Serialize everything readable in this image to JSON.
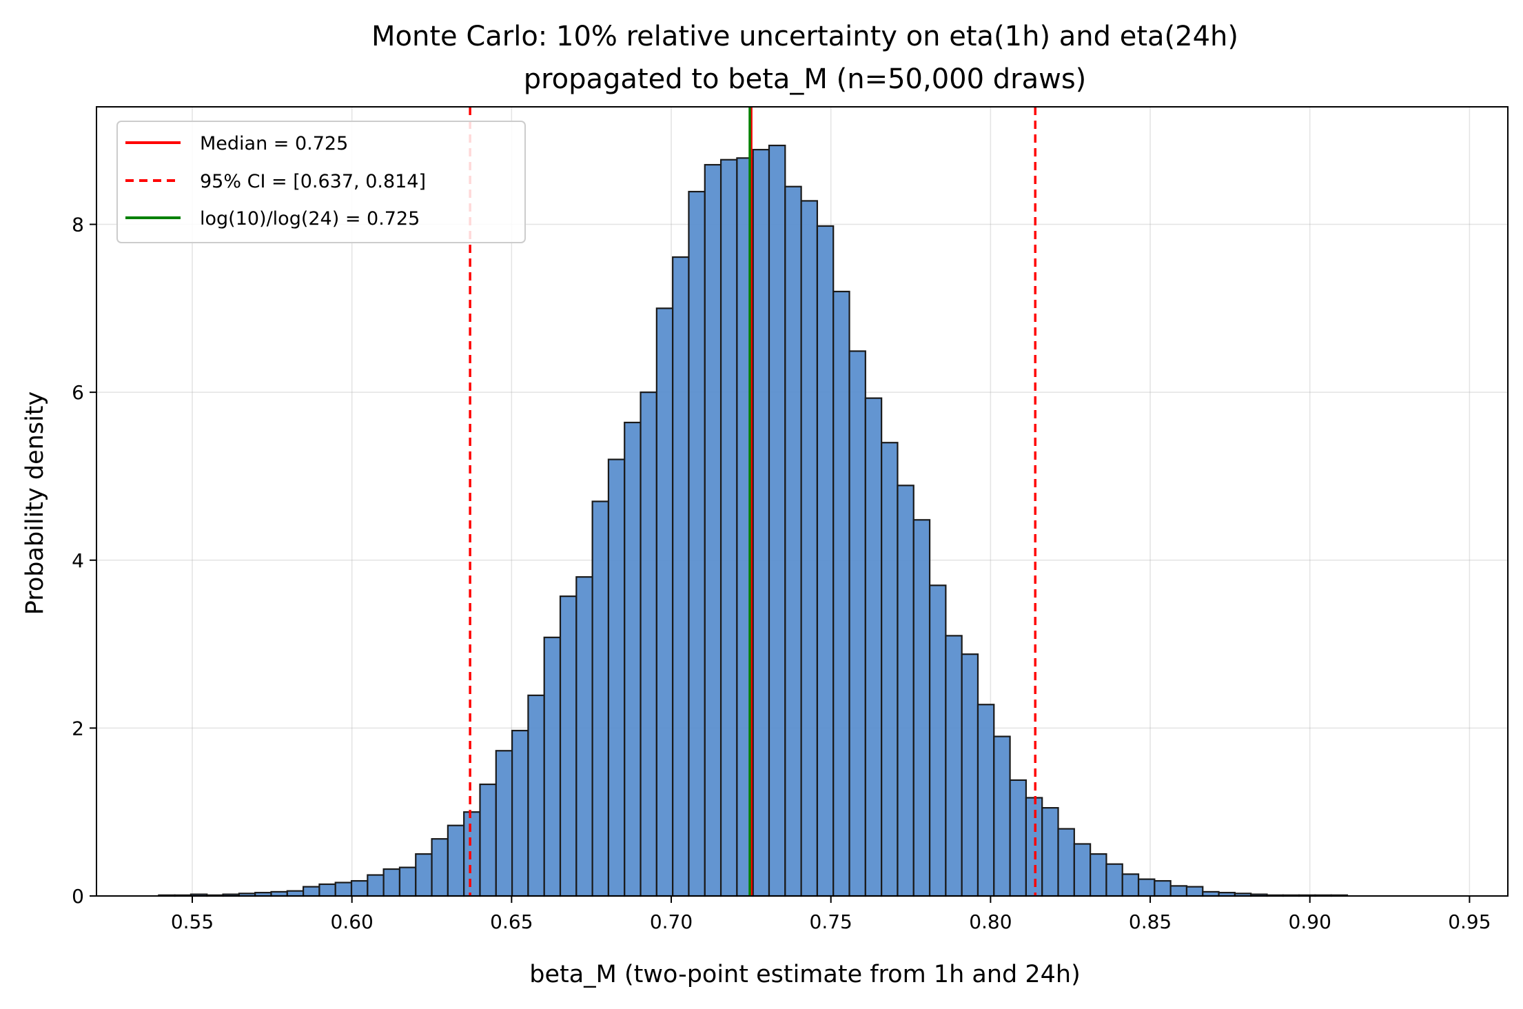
{
  "chart_data": {
    "type": "bar",
    "title": "Monte Carlo: 10% relative uncertainty on eta(1h) and eta(24h)",
    "subtitle": "propagated to beta_M (n=50,000 draws)",
    "xlabel": "beta_M (two-point estimate from 1h and 24h)",
    "ylabel": "Probability density",
    "xlim": [
      0.52,
      0.962
    ],
    "ylim": [
      0,
      9.4
    ],
    "x_ticks": [
      "0.55",
      "0.60",
      "0.65",
      "0.70",
      "0.75",
      "0.80",
      "0.85",
      "0.90",
      "0.95"
    ],
    "x_tick_values": [
      0.55,
      0.6,
      0.65,
      0.7,
      0.75,
      0.8,
      0.85,
      0.9,
      0.95
    ],
    "y_ticks": [
      "0",
      "2",
      "4",
      "6",
      "8"
    ],
    "y_tick_values": [
      0,
      2,
      4,
      6,
      8
    ],
    "grid": true,
    "legend_position": "top-left",
    "bar_color": "#5b8fcf",
    "bar_edge_color": "#1a1a1a",
    "bin_start": 0.5395,
    "bin_width": 0.00503,
    "values": [
      0.01,
      0.01,
      0.02,
      0.01,
      0.02,
      0.03,
      0.04,
      0.05,
      0.06,
      0.11,
      0.14,
      0.16,
      0.18,
      0.25,
      0.32,
      0.34,
      0.5,
      0.68,
      0.84,
      1.0,
      1.33,
      1.73,
      1.97,
      2.39,
      3.08,
      3.57,
      3.8,
      4.7,
      5.2,
      5.64,
      6.0,
      7.0,
      7.61,
      8.39,
      8.71,
      8.77,
      8.79,
      8.89,
      8.94,
      8.45,
      8.28,
      7.98,
      7.2,
      6.49,
      5.93,
      5.4,
      4.89,
      4.48,
      3.7,
      3.1,
      2.88,
      2.28,
      1.9,
      1.38,
      1.17,
      1.05,
      0.8,
      0.62,
      0.5,
      0.38,
      0.26,
      0.2,
      0.18,
      0.12,
      0.11,
      0.05,
      0.04,
      0.03,
      0.02,
      0.01,
      0.01,
      0.01,
      0.01,
      0.01,
      0.0,
      0.0,
      0.0,
      0.0,
      0.0,
      0.0
    ],
    "reference_lines": [
      {
        "name": "Median = 0.725",
        "x": 0.725,
        "color": "#ff0000",
        "style": "solid"
      },
      {
        "name": "95% CI = [0.637, 0.814]",
        "x": [
          0.637,
          0.814
        ],
        "color": "#ff0000",
        "style": "dashed"
      },
      {
        "name": "log(10)/log(24) = 0.725",
        "x": 0.7246,
        "color": "#008000",
        "style": "solid"
      }
    ]
  }
}
